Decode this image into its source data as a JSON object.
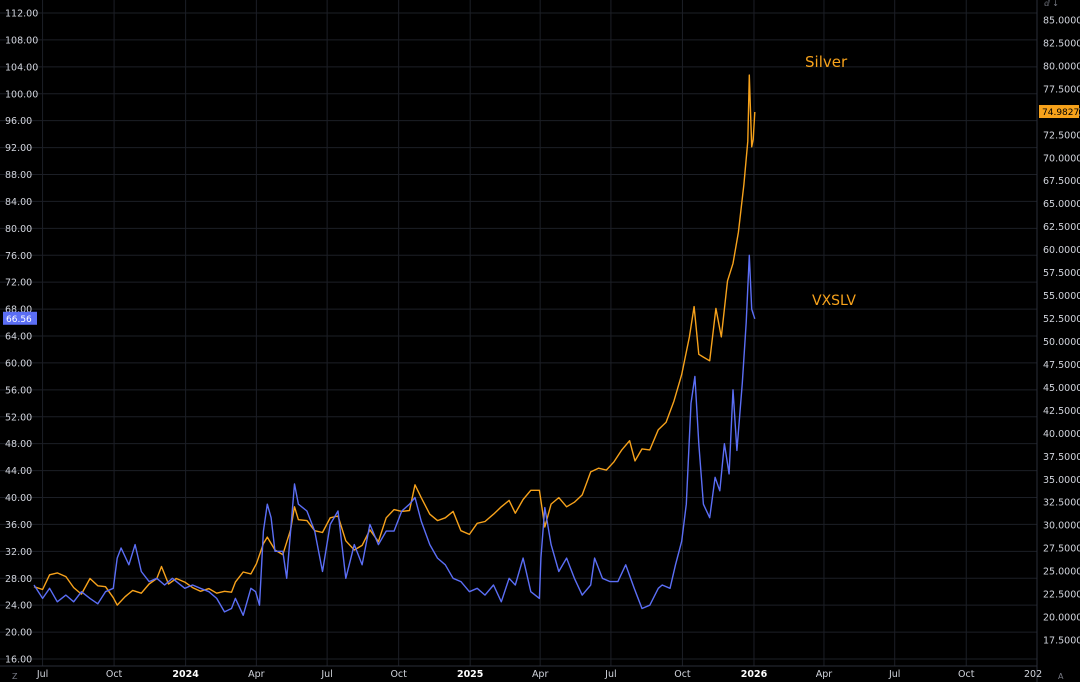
{
  "colors": {
    "background": "#000000",
    "grid": "#1c1f26",
    "silver": "#f7a21b",
    "vxslv": "#5b6ef5",
    "text": "#d1d4dc"
  },
  "chart_data": {
    "type": "line",
    "grid": true,
    "left_axis": {
      "series": "VXSLV",
      "ylim": [
        16,
        112
      ],
      "ticks": [
        "16.00",
        "20.00",
        "24.00",
        "28.00",
        "32.00",
        "36.00",
        "40.00",
        "44.00",
        "48.00",
        "52.00",
        "56.00",
        "60.00",
        "64.00",
        "68.00",
        "72.00",
        "76.00",
        "80.00",
        "84.00",
        "88.00",
        "92.00",
        "96.00",
        "100.00",
        "104.00",
        "108.00",
        "112.00"
      ],
      "last_value": "66.56"
    },
    "right_axis": {
      "series": "Silver",
      "ylim": [
        15,
        86
      ],
      "ticks": [
        "17.5000",
        "20.0000",
        "22.5000",
        "25.0000",
        "27.5000",
        "30.0000",
        "32.5000",
        "35.0000",
        "37.5000",
        "40.0000",
        "42.5000",
        "45.0000",
        "47.5000",
        "50.0000",
        "52.5000",
        "55.0000",
        "57.5000",
        "60.0000",
        "62.5000",
        "65.0000",
        "67.5000",
        "70.0000",
        "72.5000",
        "75.0000",
        "77.5000",
        "80.0000",
        "82.5000",
        "85.0000"
      ],
      "last_value": "74.9827"
    },
    "x_axis": {
      "range": [
        "2023-06-20",
        "2026-12-31"
      ],
      "ticks": [
        {
          "date": "2023-07-01",
          "label": "Jul",
          "major": false
        },
        {
          "date": "2023-10-01",
          "label": "Oct",
          "major": false
        },
        {
          "date": "2024-01-01",
          "label": "2024",
          "major": true
        },
        {
          "date": "2024-04-01",
          "label": "Apr",
          "major": false
        },
        {
          "date": "2024-07-01",
          "label": "Jul",
          "major": false
        },
        {
          "date": "2024-10-01",
          "label": "Oct",
          "major": false
        },
        {
          "date": "2025-01-01",
          "label": "2025",
          "major": true
        },
        {
          "date": "2025-04-01",
          "label": "Apr",
          "major": false
        },
        {
          "date": "2025-07-01",
          "label": "Jul",
          "major": false
        },
        {
          "date": "2025-10-01",
          "label": "Oct",
          "major": false
        },
        {
          "date": "2026-01-01",
          "label": "2026",
          "major": true
        },
        {
          "date": "2026-04-01",
          "label": "Apr",
          "major": false
        },
        {
          "date": "2026-07-01",
          "label": "Jul",
          "major": false
        },
        {
          "date": "2026-10-01",
          "label": "Oct",
          "major": false
        }
      ]
    },
    "annotations": [
      {
        "text": "Silver",
        "series": "Silver"
      },
      {
        "text": "VXSLV",
        "series": "Silver"
      }
    ],
    "series": [
      {
        "name": "Silver",
        "axis": "right",
        "color": "#f7a21b",
        "points": [
          [
            "2023-06-20",
            23.3
          ],
          [
            "2023-07-01",
            23.0
          ],
          [
            "2023-07-10",
            24.6
          ],
          [
            "2023-07-20",
            24.8
          ],
          [
            "2023-07-31",
            24.4
          ],
          [
            "2023-08-10",
            23.2
          ],
          [
            "2023-08-20",
            22.5
          ],
          [
            "2023-08-31",
            24.2
          ],
          [
            "2023-09-10",
            23.4
          ],
          [
            "2023-09-20",
            23.3
          ],
          [
            "2023-09-30",
            22.1
          ],
          [
            "2023-10-05",
            21.3
          ],
          [
            "2023-10-15",
            22.2
          ],
          [
            "2023-10-25",
            22.9
          ],
          [
            "2023-11-05",
            22.6
          ],
          [
            "2023-11-15",
            23.6
          ],
          [
            "2023-11-25",
            24.2
          ],
          [
            "2023-12-01",
            25.5
          ],
          [
            "2023-12-10",
            23.6
          ],
          [
            "2023-12-20",
            24.2
          ],
          [
            "2023-12-31",
            23.8
          ],
          [
            "2024-01-10",
            23.2
          ],
          [
            "2024-01-20",
            22.8
          ],
          [
            "2024-01-31",
            23.1
          ],
          [
            "2024-02-10",
            22.6
          ],
          [
            "2024-02-20",
            22.8
          ],
          [
            "2024-02-29",
            22.7
          ],
          [
            "2024-03-05",
            23.8
          ],
          [
            "2024-03-15",
            24.9
          ],
          [
            "2024-03-25",
            24.7
          ],
          [
            "2024-04-01",
            25.8
          ],
          [
            "2024-04-10",
            28.0
          ],
          [
            "2024-04-15",
            28.7
          ],
          [
            "2024-04-25",
            27.3
          ],
          [
            "2024-05-05",
            26.8
          ],
          [
            "2024-05-15",
            29.5
          ],
          [
            "2024-05-20",
            32.0
          ],
          [
            "2024-05-25",
            30.6
          ],
          [
            "2024-06-05",
            30.5
          ],
          [
            "2024-06-15",
            29.4
          ],
          [
            "2024-06-25",
            29.2
          ],
          [
            "2024-07-05",
            30.8
          ],
          [
            "2024-07-15",
            31.0
          ],
          [
            "2024-07-25",
            28.3
          ],
          [
            "2024-08-05",
            27.3
          ],
          [
            "2024-08-15",
            27.8
          ],
          [
            "2024-08-25",
            29.5
          ],
          [
            "2024-09-05",
            28.2
          ],
          [
            "2024-09-15",
            30.8
          ],
          [
            "2024-09-25",
            31.7
          ],
          [
            "2024-10-05",
            31.5
          ],
          [
            "2024-10-15",
            31.6
          ],
          [
            "2024-10-22",
            34.4
          ],
          [
            "2024-10-30",
            33.0
          ],
          [
            "2024-11-10",
            31.2
          ],
          [
            "2024-11-20",
            30.5
          ],
          [
            "2024-11-30",
            30.8
          ],
          [
            "2024-12-10",
            31.5
          ],
          [
            "2024-12-20",
            29.4
          ],
          [
            "2024-12-31",
            29.0
          ],
          [
            "2025-01-10",
            30.2
          ],
          [
            "2025-01-20",
            30.4
          ],
          [
            "2025-01-31",
            31.2
          ],
          [
            "2025-02-10",
            32.0
          ],
          [
            "2025-02-20",
            32.7
          ],
          [
            "2025-02-28",
            31.3
          ],
          [
            "2025-03-10",
            32.8
          ],
          [
            "2025-03-20",
            33.8
          ],
          [
            "2025-03-31",
            33.8
          ],
          [
            "2025-04-07",
            29.8
          ],
          [
            "2025-04-15",
            32.3
          ],
          [
            "2025-04-25",
            33.0
          ],
          [
            "2025-05-05",
            32.0
          ],
          [
            "2025-05-15",
            32.5
          ],
          [
            "2025-05-25",
            33.3
          ],
          [
            "2025-06-05",
            35.8
          ],
          [
            "2025-06-15",
            36.2
          ],
          [
            "2025-06-25",
            36.0
          ],
          [
            "2025-07-05",
            36.9
          ],
          [
            "2025-07-15",
            38.2
          ],
          [
            "2025-07-25",
            39.2
          ],
          [
            "2025-08-01",
            37.0
          ],
          [
            "2025-08-10",
            38.3
          ],
          [
            "2025-08-20",
            38.2
          ],
          [
            "2025-08-31",
            40.4
          ],
          [
            "2025-09-10",
            41.2
          ],
          [
            "2025-09-20",
            43.5
          ],
          [
            "2025-09-30",
            46.4
          ],
          [
            "2025-10-10",
            50.5
          ],
          [
            "2025-10-16",
            53.8
          ],
          [
            "2025-10-22",
            48.6
          ],
          [
            "2025-10-28",
            48.3
          ],
          [
            "2025-11-05",
            47.9
          ],
          [
            "2025-11-13",
            53.6
          ],
          [
            "2025-11-20",
            50.5
          ],
          [
            "2025-11-28",
            56.6
          ],
          [
            "2025-12-05",
            58.5
          ],
          [
            "2025-12-12",
            61.9
          ],
          [
            "2025-12-19",
            67.1
          ],
          [
            "2025-12-24",
            71.8
          ],
          [
            "2025-12-26",
            79.0
          ],
          [
            "2025-12-29",
            71.2
          ],
          [
            "2025-12-31",
            72.0
          ],
          [
            "2026-01-02",
            74.98
          ]
        ]
      },
      {
        "name": "VXSLV",
        "axis": "left",
        "color": "#5b6ef5",
        "points": [
          [
            "2023-06-20",
            27.0
          ],
          [
            "2023-07-01",
            25.0
          ],
          [
            "2023-07-10",
            26.5
          ],
          [
            "2023-07-20",
            24.5
          ],
          [
            "2023-07-31",
            25.5
          ],
          [
            "2023-08-10",
            24.5
          ],
          [
            "2023-08-20",
            26.0
          ],
          [
            "2023-08-31",
            25.0
          ],
          [
            "2023-09-10",
            24.2
          ],
          [
            "2023-09-20",
            26.0
          ],
          [
            "2023-09-30",
            26.5
          ],
          [
            "2023-10-05",
            31.0
          ],
          [
            "2023-10-10",
            32.5
          ],
          [
            "2023-10-20",
            30.0
          ],
          [
            "2023-10-28",
            33.0
          ],
          [
            "2023-11-05",
            29.0
          ],
          [
            "2023-11-15",
            27.5
          ],
          [
            "2023-11-25",
            28.0
          ],
          [
            "2023-12-05",
            27.0
          ],
          [
            "2023-12-15",
            28.0
          ],
          [
            "2023-12-31",
            26.5
          ],
          [
            "2024-01-10",
            27.0
          ],
          [
            "2024-01-20",
            26.5
          ],
          [
            "2024-01-31",
            26.0
          ],
          [
            "2024-02-10",
            25.0
          ],
          [
            "2024-02-20",
            23.0
          ],
          [
            "2024-02-29",
            23.5
          ],
          [
            "2024-03-05",
            25.0
          ],
          [
            "2024-03-15",
            22.5
          ],
          [
            "2024-03-25",
            26.5
          ],
          [
            "2024-03-31",
            26.0
          ],
          [
            "2024-04-05",
            24.0
          ],
          [
            "2024-04-10",
            35.0
          ],
          [
            "2024-04-15",
            39.0
          ],
          [
            "2024-04-20",
            37.0
          ],
          [
            "2024-04-25",
            32.0
          ],
          [
            "2024-05-05",
            32.0
          ],
          [
            "2024-05-10",
            28.0
          ],
          [
            "2024-05-20",
            42.0
          ],
          [
            "2024-05-25",
            39.0
          ],
          [
            "2024-06-05",
            38.0
          ],
          [
            "2024-06-15",
            35.0
          ],
          [
            "2024-06-25",
            29.0
          ],
          [
            "2024-07-05",
            36.0
          ],
          [
            "2024-07-15",
            38.0
          ],
          [
            "2024-07-25",
            28.0
          ],
          [
            "2024-08-05",
            33.0
          ],
          [
            "2024-08-15",
            30.0
          ],
          [
            "2024-08-25",
            36.0
          ],
          [
            "2024-09-05",
            33.0
          ],
          [
            "2024-09-15",
            35.0
          ],
          [
            "2024-09-25",
            35.0
          ],
          [
            "2024-10-05",
            38.0
          ],
          [
            "2024-10-15",
            39.0
          ],
          [
            "2024-10-22",
            40.0
          ],
          [
            "2024-10-30",
            36.5
          ],
          [
            "2024-11-10",
            33.0
          ],
          [
            "2024-11-20",
            31.0
          ],
          [
            "2024-11-30",
            30.0
          ],
          [
            "2024-12-10",
            28.0
          ],
          [
            "2024-12-20",
            27.5
          ],
          [
            "2024-12-31",
            26.0
          ],
          [
            "2025-01-10",
            26.5
          ],
          [
            "2025-01-20",
            25.5
          ],
          [
            "2025-01-31",
            27.0
          ],
          [
            "2025-02-10",
            24.5
          ],
          [
            "2025-02-20",
            28.0
          ],
          [
            "2025-02-28",
            27.0
          ],
          [
            "2025-03-10",
            31.0
          ],
          [
            "2025-03-20",
            26.0
          ],
          [
            "2025-03-31",
            25.0
          ],
          [
            "2025-04-02",
            31.0
          ],
          [
            "2025-04-07",
            38.5
          ],
          [
            "2025-04-15",
            33.0
          ],
          [
            "2025-04-25",
            29.0
          ],
          [
            "2025-05-05",
            31.0
          ],
          [
            "2025-05-15",
            28.0
          ],
          [
            "2025-05-25",
            25.5
          ],
          [
            "2025-06-05",
            27.0
          ],
          [
            "2025-06-10",
            31.0
          ],
          [
            "2025-06-20",
            28.0
          ],
          [
            "2025-06-30",
            27.5
          ],
          [
            "2025-07-10",
            27.5
          ],
          [
            "2025-07-20",
            30.0
          ],
          [
            "2025-07-31",
            26.5
          ],
          [
            "2025-08-10",
            23.5
          ],
          [
            "2025-08-20",
            24.0
          ],
          [
            "2025-08-31",
            26.5
          ],
          [
            "2025-09-05",
            27.0
          ],
          [
            "2025-09-15",
            26.5
          ],
          [
            "2025-09-22",
            30.0
          ],
          [
            "2025-09-30",
            33.5
          ],
          [
            "2025-10-06",
            39.0
          ],
          [
            "2025-10-12",
            54.0
          ],
          [
            "2025-10-17",
            58.0
          ],
          [
            "2025-10-22",
            48.0
          ],
          [
            "2025-10-28",
            39.0
          ],
          [
            "2025-11-05",
            37.0
          ],
          [
            "2025-11-12",
            43.0
          ],
          [
            "2025-11-18",
            41.0
          ],
          [
            "2025-11-24",
            48.0
          ],
          [
            "2025-11-30",
            43.5
          ],
          [
            "2025-12-05",
            56.0
          ],
          [
            "2025-12-10",
            47.0
          ],
          [
            "2025-12-17",
            57.0
          ],
          [
            "2025-12-22",
            66.0
          ],
          [
            "2025-12-26",
            76.0
          ],
          [
            "2025-12-29",
            68.0
          ],
          [
            "2026-01-02",
            66.56
          ]
        ]
      }
    ]
  },
  "corner": {
    "bottom_left": "Z",
    "bottom_right": "A",
    "top_right": "ⅆ ↓",
    "x_overflow": "202"
  }
}
